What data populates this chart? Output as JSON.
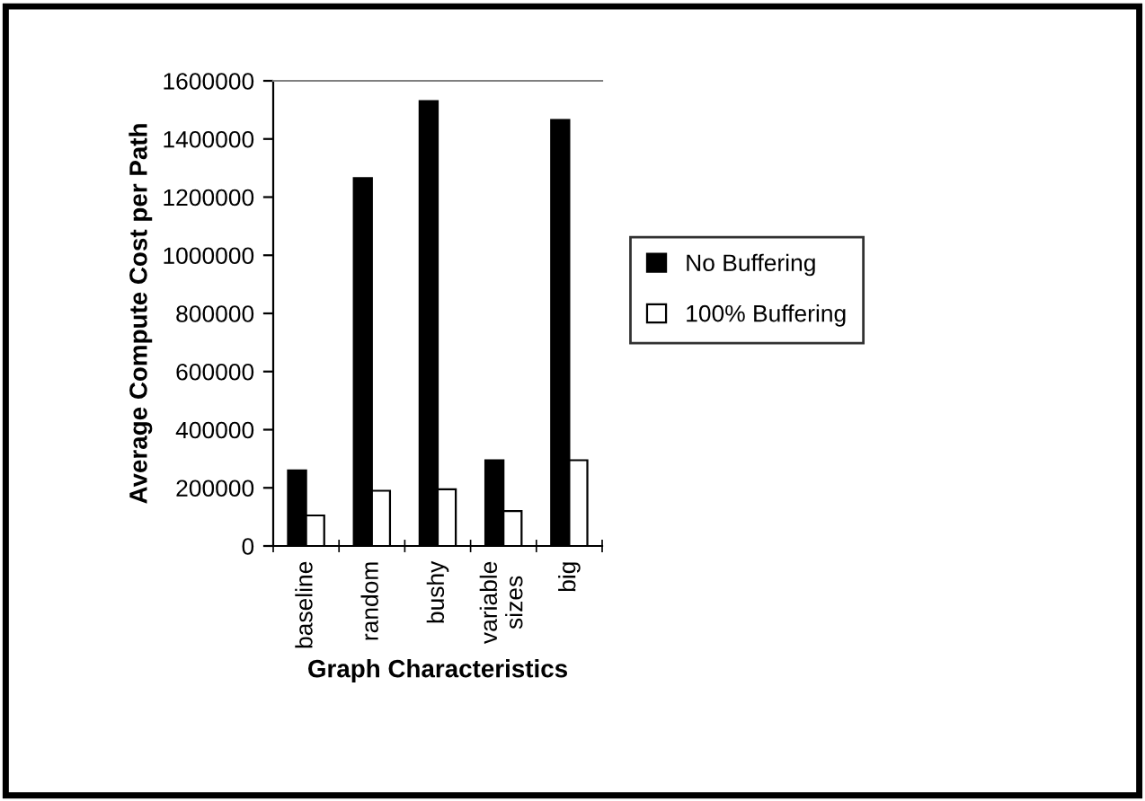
{
  "chart_data": {
    "type": "bar",
    "xlabel": "Graph Characteristics",
    "ylabel": "Average Compute Cost per Path",
    "categories": [
      "baseline",
      "random",
      "bushy",
      "variable\nsizes",
      "big"
    ],
    "series": [
      {
        "name": "No Buffering",
        "color": "#000000",
        "values": [
          260000,
          1265000,
          1530000,
          295000,
          1465000
        ]
      },
      {
        "name": "100% Buffering",
        "color": "#ffffff",
        "values": [
          105000,
          190000,
          195000,
          120000,
          295000
        ]
      }
    ],
    "ylim": [
      0,
      1600000
    ],
    "yticks": [
      0,
      200000,
      400000,
      600000,
      800000,
      1000000,
      1200000,
      1400000,
      1600000
    ],
    "grid": false,
    "legend": "right"
  }
}
